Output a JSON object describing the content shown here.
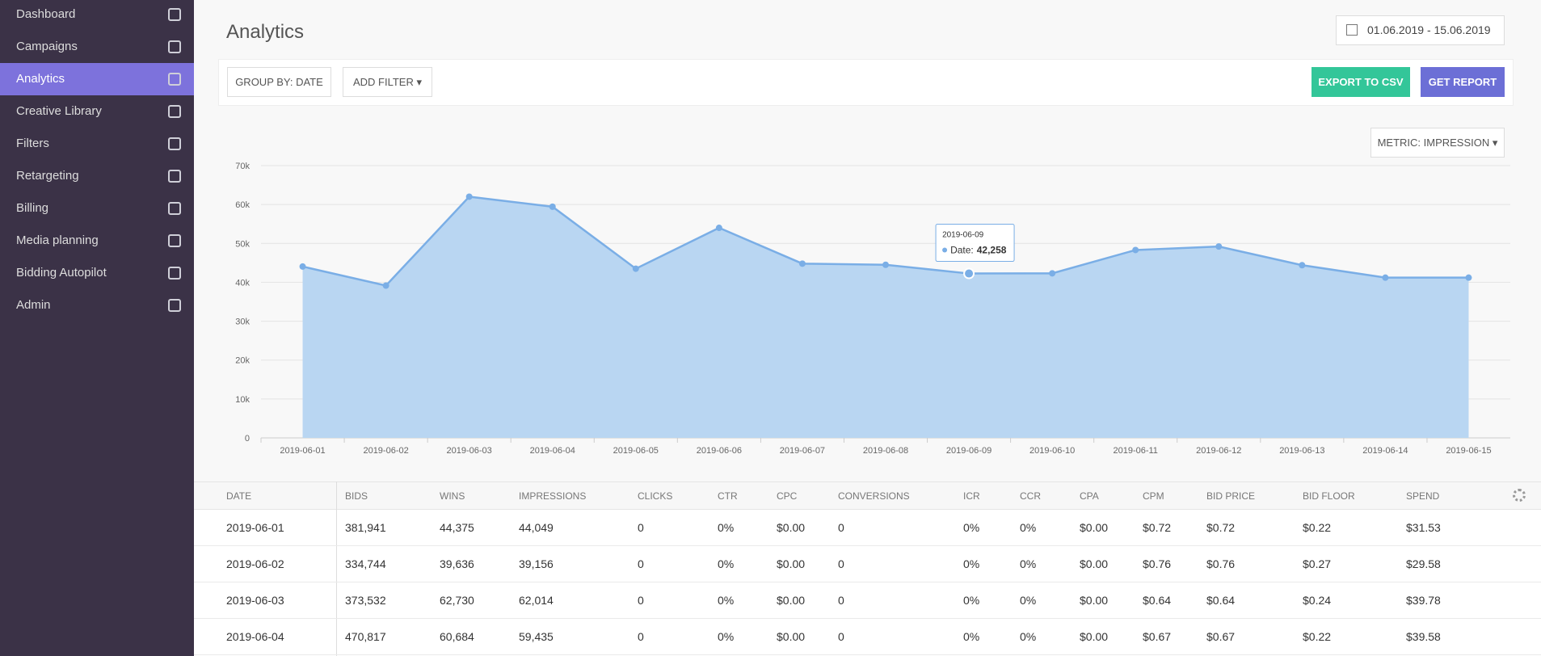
{
  "sidebar": {
    "items": [
      "Dashboard",
      "Campaigns",
      "Analytics",
      "Creative Library",
      "Filters",
      "Retargeting",
      "Billing",
      "Media planning",
      "Bidding Autopilot",
      "Admin"
    ],
    "active": "Analytics"
  },
  "header": {
    "title": "Analytics",
    "date_range": "01.06.2019 - 15.06.2019"
  },
  "toolbar": {
    "group_by": "GROUP BY: DATE",
    "add_filter": "ADD FILTER",
    "export": "EXPORT TO CSV",
    "report": "GET REPORT",
    "metric": "METRIC: IMPRESSION"
  },
  "chart_data": {
    "type": "area",
    "color": "#7aaee6",
    "fill": "#b9d6f2",
    "grid": true,
    "categories": [
      "2019-06-01",
      "2019-06-02",
      "2019-06-03",
      "2019-06-04",
      "2019-06-05",
      "2019-06-06",
      "2019-06-07",
      "2019-06-08",
      "2019-06-09",
      "2019-06-10",
      "2019-06-11",
      "2019-06-12",
      "2019-06-13",
      "2019-06-14",
      "2019-06-15"
    ],
    "series": [
      {
        "name": "Date",
        "color": "#7aaee6",
        "values": [
          44049,
          39156,
          62014,
          59435,
          43500,
          54000,
          44800,
          44500,
          42258,
          42300,
          48300,
          49200,
          44400,
          41200,
          41200
        ]
      }
    ],
    "ylim": [
      0,
      70000
    ],
    "yticks": [
      0,
      {
        "value": 10000,
        "label": "10k"
      },
      {
        "value": 20000,
        "label": "20k"
      },
      {
        "value": 30000,
        "label": "30k"
      },
      {
        "value": 40000,
        "label": "40k"
      },
      {
        "value": 50000,
        "label": "50k"
      },
      {
        "value": 60000,
        "label": "60k"
      },
      {
        "value": 70000,
        "label": "70k"
      }
    ],
    "tooltip": {
      "title": "2019-06-09",
      "label": "Date:",
      "value": "42,258"
    }
  },
  "table": {
    "columns": [
      "DATE",
      "BIDS",
      "WINS",
      "IMPRESSIONS",
      "CLICKS",
      "CTR",
      "CPC",
      "CONVERSIONS",
      "ICR",
      "CCR",
      "CPA",
      "CPM",
      "BID PRICE",
      "BID FLOOR",
      "SPEND"
    ],
    "rows": [
      [
        "2019-06-01",
        "381,941",
        "44,375",
        "44,049",
        "0",
        "0%",
        "$0.00",
        "0",
        "0%",
        "0%",
        "$0.00",
        "$0.72",
        "$0.72",
        "$0.22",
        "$31.53"
      ],
      [
        "2019-06-02",
        "334,744",
        "39,636",
        "39,156",
        "0",
        "0%",
        "$0.00",
        "0",
        "0%",
        "0%",
        "$0.00",
        "$0.76",
        "$0.76",
        "$0.27",
        "$29.58"
      ],
      [
        "2019-06-03",
        "373,532",
        "62,730",
        "62,014",
        "0",
        "0%",
        "$0.00",
        "0",
        "0%",
        "0%",
        "$0.00",
        "$0.64",
        "$0.64",
        "$0.24",
        "$39.78"
      ],
      [
        "2019-06-04",
        "470,817",
        "60,684",
        "59,435",
        "0",
        "0%",
        "$0.00",
        "0",
        "0%",
        "0%",
        "$0.00",
        "$0.67",
        "$0.67",
        "$0.22",
        "$39.58"
      ]
    ]
  }
}
